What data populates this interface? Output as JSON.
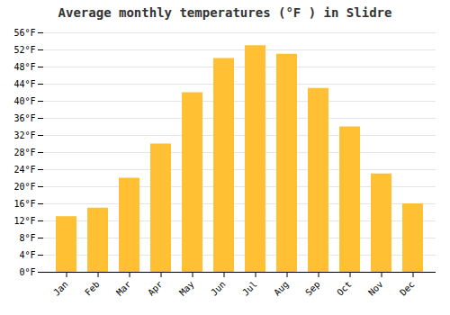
{
  "chart_data": {
    "type": "bar",
    "title": "Average monthly temperatures (°F ) in Slidre",
    "categories": [
      "Jan",
      "Feb",
      "Mar",
      "Apr",
      "May",
      "Jun",
      "Jul",
      "Aug",
      "Sep",
      "Oct",
      "Nov",
      "Dec"
    ],
    "values": [
      13,
      15,
      22,
      30,
      42,
      50,
      53,
      51,
      43,
      34,
      23,
      16
    ],
    "color": "#FFC033",
    "ylim": [
      0,
      56
    ],
    "yticks": [
      {
        "value": 0,
        "label": "0°F"
      },
      {
        "value": 4,
        "label": "4°F"
      },
      {
        "value": 8,
        "label": "8°F"
      },
      {
        "value": 12,
        "label": "12°F"
      },
      {
        "value": 16,
        "label": "16°F"
      },
      {
        "value": 20,
        "label": "20°F"
      },
      {
        "value": 24,
        "label": "24°F"
      },
      {
        "value": 28,
        "label": "28°F"
      },
      {
        "value": 32,
        "label": "32°F"
      },
      {
        "value": 36,
        "label": "36°F"
      },
      {
        "value": 40,
        "label": "40°F"
      },
      {
        "value": 44,
        "label": "44°F"
      },
      {
        "value": 48,
        "label": "48°F"
      },
      {
        "value": 52,
        "label": "52°F"
      },
      {
        "value": 56,
        "label": "56°F"
      }
    ],
    "grid": true
  }
}
